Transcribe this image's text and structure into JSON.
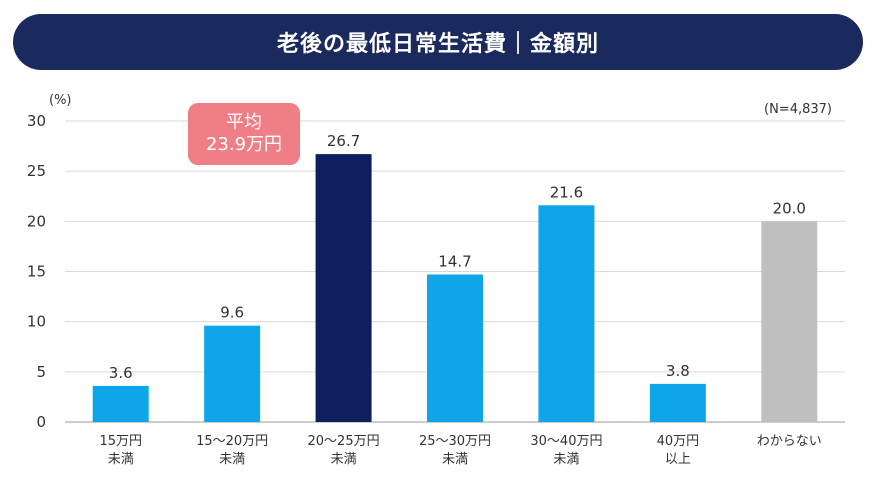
{
  "chart_data": {
    "type": "bar",
    "title": "老後の最低日常生活費｜金額別",
    "ylabel": "(%)",
    "ylim": [
      0,
      30
    ],
    "yticks": [
      "0",
      "5",
      "10",
      "15",
      "20",
      "25",
      "30"
    ],
    "note": "(N=4,837)",
    "categories": [
      [
        "15万円",
        "未満"
      ],
      [
        "15～20万円",
        "未満"
      ],
      [
        "20～25万円",
        "未満"
      ],
      [
        "25～30万円",
        "未満"
      ],
      [
        "30～40万円",
        "未満"
      ],
      [
        "40万円",
        "以上"
      ],
      [
        "わからない"
      ]
    ],
    "values": [
      3.6,
      9.6,
      26.7,
      14.7,
      21.6,
      3.8,
      20.0
    ],
    "value_labels": [
      "3.6",
      "9.6",
      "26.7",
      "14.7",
      "21.6",
      "3.8",
      "20.0"
    ],
    "bar_colors": [
      "#0ea5e9",
      "#0ea5e9",
      "#0d1f5c",
      "#0ea5e9",
      "#0ea5e9",
      "#0ea5e9",
      "#bfbfbf"
    ],
    "grid": true,
    "annotation": {
      "line1": "平均",
      "line2": "23.9万円",
      "color": "#f07e86"
    }
  }
}
